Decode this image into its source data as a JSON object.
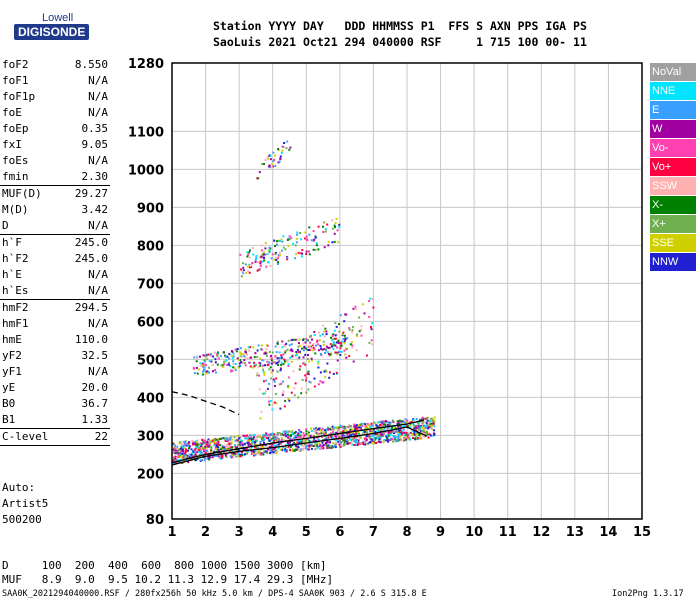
{
  "logo": {
    "top": "Lowell",
    "main": "DIGISONDE"
  },
  "header": {
    "line1": "Station YYYY DAY   DDD HHMMSS P1  FFS S AXN PPS IGA PS",
    "line2": "SaoLuis 2021 Oct21 294 040000 RSF     1 715 100 00- 11"
  },
  "params": [
    {
      "name": "foF2",
      "value": "8.550"
    },
    {
      "name": "foF1",
      "value": "N/A"
    },
    {
      "name": "foF1p",
      "value": "N/A"
    },
    {
      "name": "foE",
      "value": "N/A"
    },
    {
      "name": "foEp",
      "value": "0.35"
    },
    {
      "name": "fxI",
      "value": "9.05"
    },
    {
      "name": "foEs",
      "value": "N/A"
    },
    {
      "name": "fmin",
      "value": "2.30",
      "sep": true
    },
    {
      "name": "MUF(D)",
      "value": "29.27"
    },
    {
      "name": "M(D)",
      "value": "3.42"
    },
    {
      "name": "D",
      "value": "N/A",
      "sep": true
    },
    {
      "name": "h`F",
      "value": "245.0"
    },
    {
      "name": "h`F2",
      "value": "245.0"
    },
    {
      "name": "h`E",
      "value": "N/A"
    },
    {
      "name": "h`Es",
      "value": "N/A",
      "sep": true
    },
    {
      "name": "hmF2",
      "value": "294.5"
    },
    {
      "name": "hmF1",
      "value": "N/A"
    },
    {
      "name": "hmE",
      "value": "110.0"
    },
    {
      "name": "yF2",
      "value": "32.5"
    },
    {
      "name": "yF1",
      "value": "N/A"
    },
    {
      "name": "yE",
      "value": "20.0"
    },
    {
      "name": "B0",
      "value": "36.7"
    },
    {
      "name": "B1",
      "value": "1.33",
      "sep": true
    },
    {
      "name": "C-level",
      "value": "22",
      "sep": true
    }
  ],
  "autoscaling": {
    "line1": "Auto:",
    "line2": "Artist5",
    "line3": "500200"
  },
  "distance_table": {
    "line1": "D     100  200  400  600  800 1000 1500 3000 [km]",
    "line2": "MUF   8.9  9.0  9.5 10.2 11.3 12.9 17.4 29.3 [MHz]"
  },
  "footer": "SAA0K_2021294040000.RSF / 280fx256h 50 kHz 5.0 km / DPS-4 SAA0K 903 / 2.6 S 315.8 E",
  "footer_right": "Ion2Png 1.3.17",
  "legend": [
    {
      "label": "NoVal",
      "color": "#a0a0a0"
    },
    {
      "label": "NNE",
      "color": "#00e5ff"
    },
    {
      "label": "E",
      "color": "#3aa0ff"
    },
    {
      "label": "W",
      "color": "#a000a0"
    },
    {
      "label": "Vo-",
      "color": "#ff40b0"
    },
    {
      "label": "Vo+",
      "color": "#ff0040"
    },
    {
      "label": "SSW",
      "color": "#ffb0b0"
    },
    {
      "label": "X-",
      "color": "#008000"
    },
    {
      "label": "X+",
      "color": "#70b050"
    },
    {
      "label": "SSE",
      "color": "#d0d000"
    },
    {
      "label": "NNW",
      "color": "#2020d0"
    }
  ],
  "chart_data": {
    "type": "scatter",
    "xlabel": "",
    "ylabel": "",
    "xlim": [
      1,
      15
    ],
    "ylim": [
      80,
      1280
    ],
    "xticks": [
      "1",
      "2",
      "3",
      "4",
      "5",
      "6",
      "7",
      "8",
      "9",
      "10",
      "11",
      "12",
      "13",
      "14",
      "15"
    ],
    "yticks": [
      {
        "value": 80,
        "label": "80"
      },
      {
        "value": 200,
        "label": "200"
      },
      {
        "value": 300,
        "label": "300"
      },
      {
        "value": 400,
        "label": "400"
      },
      {
        "value": 500,
        "label": "500"
      },
      {
        "value": 600,
        "label": "600"
      },
      {
        "value": 700,
        "label": "700"
      },
      {
        "value": 800,
        "label": "800"
      },
      {
        "value": 900,
        "label": "900"
      },
      {
        "value": 1000,
        "label": "1000"
      },
      {
        "value": 1100,
        "label": "1100"
      },
      {
        "value": 1280,
        "label": "1280"
      }
    ],
    "grid": true,
    "series": [
      {
        "name": "O-trace profile",
        "color": "#000000",
        "x": [
          1.0,
          2.0,
          3.0,
          4.0,
          5.0,
          6.0,
          7.0,
          8.0,
          8.5
        ],
        "y": [
          228,
          250,
          265,
          280,
          292,
          305,
          318,
          330,
          340
        ]
      },
      {
        "name": "X-trace profile",
        "color": "#000000",
        "x": [
          1.0,
          2.0,
          3.0,
          4.0,
          5.0,
          6.0,
          7.0,
          8.0,
          8.6
        ],
        "y": [
          222,
          245,
          258,
          268,
          280,
          292,
          305,
          322,
          298
        ]
      },
      {
        "name": "dashed model",
        "color": "#000000",
        "dashed": true,
        "x": [
          1.0,
          1.5,
          2.0,
          2.5,
          3.0
        ],
        "y": [
          415,
          405,
          390,
          375,
          355
        ]
      }
    ],
    "echo_clusters": [
      {
        "xmin": 1.0,
        "xmax": 8.8,
        "ylow": 245,
        "yhigh": 370,
        "density": 1800
      },
      {
        "xmin": 1.6,
        "xmax": 6.2,
        "ylow": 470,
        "yhigh": 600,
        "density": 320
      },
      {
        "xmin": 3.0,
        "xmax": 6.0,
        "ylow": 740,
        "yhigh": 900,
        "density": 160
      },
      {
        "xmin": 3.5,
        "xmax": 4.5,
        "ylow": 990,
        "yhigh": 1100,
        "density": 40
      },
      {
        "xmin": 3.5,
        "xmax": 7.0,
        "ylow": 380,
        "yhigh": 720,
        "density": 220
      }
    ]
  }
}
